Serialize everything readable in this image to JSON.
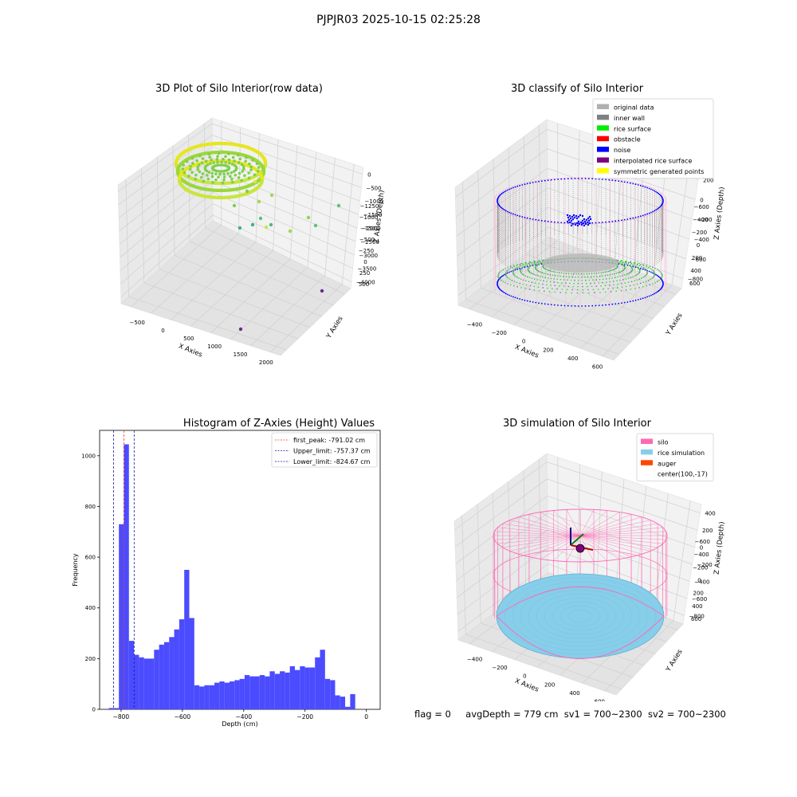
{
  "figure_title": "PJPJR03 2025-10-15 02:25:28",
  "colors": {
    "hist_bar": "#4b4bff",
    "first_peak": "#ff3030",
    "limits": "#1a1aa0",
    "silo": "#ff69b4",
    "rice_simulation": "#87ceeb",
    "auger": "#ff4500",
    "inner_wall": "#808080",
    "rice_surface": "#00ee00",
    "noise": "#0000ff",
    "original_data": "#b0b0b0",
    "interpolated": "#800080",
    "symmetric": "#ffff00"
  },
  "panels": {
    "raw": {
      "title": "3D Plot of Silo Interior(row data)",
      "xlabel": "X Axies",
      "ylabel": "Y Axies",
      "zlabel": "Z Axies (Depth)",
      "xticks": [
        "−500",
        "0",
        "500",
        "1000",
        "1500",
        "2000"
      ],
      "yticks": [
        "500",
        "250",
        "0",
        "−250",
        "−500",
        "−750",
        "−1000",
        "−1250"
      ],
      "zticks": [
        "0",
        "−500",
        "−1000",
        "−1500",
        "−2000",
        "−2500",
        "−3000",
        "−3500",
        "−4000"
      ]
    },
    "classify": {
      "title": "3D classify of Silo Interior",
      "xlabel": "X Axies",
      "ylabel": "Y Axies",
      "zlabel": "Z Axies (Depth)",
      "xticks": [
        "−400",
        "−200",
        "0",
        "200",
        "400",
        "600"
      ],
      "yticks": [
        "600",
        "400",
        "200",
        "0",
        "−200",
        "−400",
        "−600"
      ],
      "zticks": [
        "200",
        "0",
        "−200",
        "−400",
        "−600",
        "−800"
      ],
      "legend": [
        {
          "label": "original data",
          "color": "#b0b0b0"
        },
        {
          "label": "inner wall",
          "color": "#808080"
        },
        {
          "label": "rice surface",
          "color": "#00ee00"
        },
        {
          "label": "obstacle",
          "color": "#ff0000"
        },
        {
          "label": "noise",
          "color": "#0000ff"
        },
        {
          "label": "interpolated rice surface",
          "color": "#800080"
        },
        {
          "label": "symmetric generated points",
          "color": "#ffff00"
        }
      ]
    },
    "simulation": {
      "title": "3D simulation of Silo Interior",
      "xlabel": "X Axies",
      "ylabel": "Y Axies",
      "zlabel": "Z Axies (Depth)",
      "xticks": [
        "−400",
        "−200",
        "0",
        "200",
        "400",
        "600"
      ],
      "yticks": [
        "600",
        "400",
        "200",
        "0",
        "−200",
        "−400",
        "−600"
      ],
      "zticks": [
        "400",
        "200",
        "0",
        "−200",
        "−400",
        "−600",
        "−800"
      ],
      "legend": [
        {
          "label": "silo",
          "color": "#ff69b4"
        },
        {
          "label": "rice simulation",
          "color": "#87ceeb"
        },
        {
          "label": "auger",
          "color": "#ff4500"
        },
        {
          "label": "center(100,-17)",
          "color": ""
        }
      ]
    }
  },
  "footer": {
    "flag": "flag = 0",
    "avg": "avgDepth = 779 cm",
    "sv1": "sv1 = 700~2300",
    "sv2": "sv2 = 700~2300"
  },
  "chart_data": [
    {
      "type": "bar",
      "title": "Histogram of Z-Axies (Height) Values",
      "xlabel": "Depth (cm)",
      "ylabel": "Frequency",
      "xlim": [
        -870,
        45
      ],
      "ylim": [
        0,
        1100
      ],
      "xticks": [
        -800,
        -600,
        -400,
        -200,
        0
      ],
      "yticks": [
        0,
        200,
        400,
        600,
        800,
        1000
      ],
      "bin_start": -840,
      "bin_width": 16.4,
      "values": [
        5,
        5,
        730,
        1045,
        270,
        215,
        205,
        200,
        200,
        235,
        255,
        265,
        285,
        315,
        355,
        550,
        360,
        95,
        90,
        95,
        95,
        105,
        110,
        105,
        110,
        115,
        120,
        135,
        130,
        130,
        135,
        130,
        150,
        140,
        150,
        145,
        170,
        155,
        170,
        165,
        165,
        205,
        235,
        120,
        115,
        55,
        50,
        10,
        60
      ],
      "vlines": [
        {
          "label": "first_peak: -791.02 cm",
          "x": -791.02,
          "color": "#ff3030"
        },
        {
          "label": "Upper_limit: -757.37 cm",
          "x": -757.37,
          "color": "#1a1aa0"
        },
        {
          "label": "Lower_limit: -824.67 cm",
          "x": -824.67,
          "color": "#1a1aa0"
        }
      ],
      "legend_position": "top-right"
    }
  ]
}
